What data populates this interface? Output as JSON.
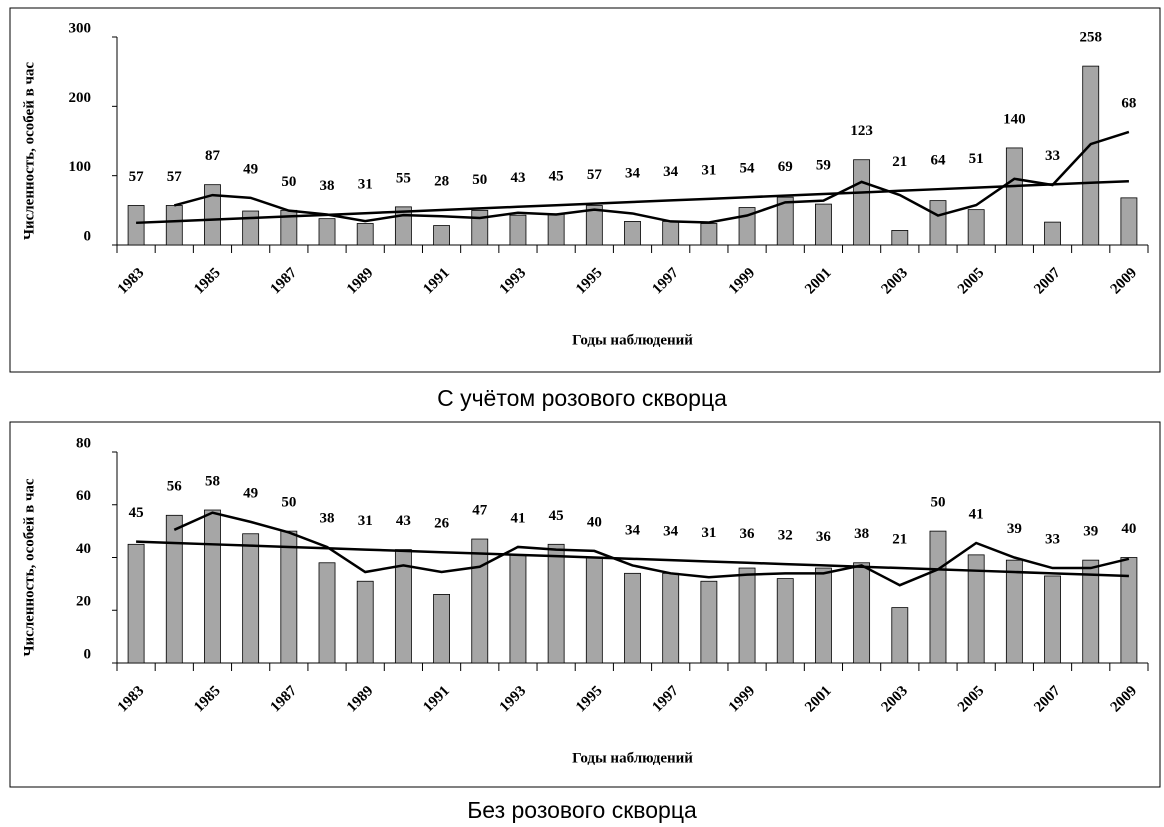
{
  "chart_data": [
    {
      "type": "bar",
      "caption": "С учётом розового скворца",
      "xlabel": "Годы наблюдений",
      "ylabel": "Численность, особей в час",
      "categories": [
        "1983",
        null,
        "1985",
        null,
        "1987",
        null,
        "1989",
        null,
        "1991",
        null,
        "1993",
        null,
        "1995",
        null,
        "1997",
        null,
        "1999",
        null,
        "2001",
        null,
        "2003",
        null,
        "2005",
        null,
        "2007",
        null,
        "2009"
      ],
      "ylim": [
        0,
        300
      ],
      "yticks": [
        0,
        100,
        200,
        300
      ],
      "series": [
        {
          "type": "bar",
          "color": "#a6a6a6",
          "data_labels": true,
          "values": [
            57,
            57,
            87,
            49,
            50,
            38,
            31,
            55,
            28,
            50,
            43,
            45,
            57,
            34,
            34,
            31,
            54,
            69,
            59,
            123,
            21,
            64,
            51,
            140,
            33,
            258,
            68
          ]
        },
        {
          "type": "line",
          "color": "#000000",
          "values": [
            null,
            57,
            72,
            68,
            49.5,
            44,
            34.5,
            43,
            41.5,
            39,
            46.5,
            44,
            51,
            45.5,
            34,
            32.5,
            42.5,
            61.5,
            64,
            91,
            72,
            42.5,
            57.5,
            95.5,
            86.5,
            145.5,
            163
          ]
        },
        {
          "type": "line",
          "color": "#000000",
          "values": [
            32,
            34.3,
            36.6,
            38.9,
            41.2,
            43.5,
            45.8,
            48.2,
            50.5,
            52.8,
            55.1,
            57.4,
            59.7,
            62,
            64.3,
            66.6,
            68.9,
            71.2,
            73.5,
            75.8,
            78.2,
            80.5,
            82.8,
            85.1,
            87.4,
            89.7,
            92
          ]
        }
      ]
    },
    {
      "type": "bar",
      "caption": "Без розового скворца",
      "xlabel": "Годы наблюдений",
      "ylabel": "Численность, особей в час",
      "categories": [
        "1983",
        null,
        "1985",
        null,
        "1987",
        null,
        "1989",
        null,
        "1991",
        null,
        "1993",
        null,
        "1995",
        null,
        "1997",
        null,
        "1999",
        null,
        "2001",
        null,
        "2003",
        null,
        "2005",
        null,
        "2007",
        null,
        "2009"
      ],
      "ylim": [
        0,
        80
      ],
      "yticks": [
        0,
        20,
        40,
        60,
        80
      ],
      "series": [
        {
          "type": "bar",
          "color": "#a6a6a6",
          "data_labels": true,
          "values": [
            45,
            56,
            58,
            49,
            50,
            38,
            31,
            43,
            26,
            47,
            41,
            45,
            40,
            34,
            34,
            31,
            36,
            32,
            36,
            38,
            21,
            50,
            41,
            39,
            33,
            39,
            40
          ]
        },
        {
          "type": "line",
          "color": "#000000",
          "values": [
            null,
            50.5,
            57,
            53.5,
            49.5,
            44,
            34.5,
            37,
            34.5,
            36.5,
            44,
            43,
            42.5,
            37,
            34,
            32.5,
            33.5,
            34,
            34,
            37,
            29.5,
            35.5,
            45.5,
            40,
            36,
            36,
            39.5
          ]
        },
        {
          "type": "line",
          "color": "#000000",
          "values": [
            46,
            45.5,
            45,
            44.5,
            44,
            43.5,
            43,
            42.5,
            42,
            41.5,
            41,
            40.5,
            40,
            39.5,
            39,
            38.5,
            38,
            37.5,
            37,
            36.5,
            36,
            35.5,
            35,
            34.5,
            34,
            33.5,
            33
          ]
        }
      ]
    }
  ]
}
